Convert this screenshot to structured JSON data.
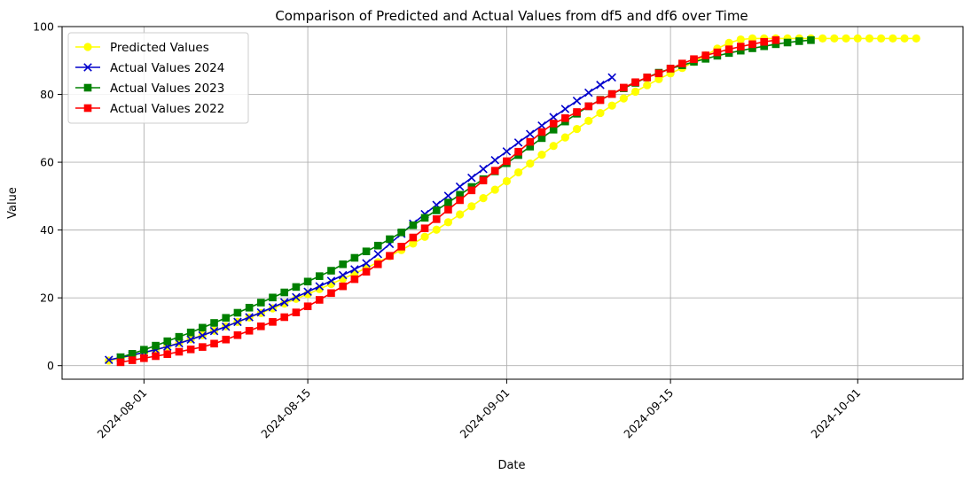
{
  "chart_data": {
    "type": "line",
    "title": "Comparison of Predicted and Actual Values from df5 and df6 over Time",
    "xlabel": "Date",
    "ylabel": "Value",
    "xlim": [
      "2024-07-25",
      "2024-10-10"
    ],
    "ylim": [
      -4,
      100
    ],
    "grid": true,
    "legend_position": "upper-left",
    "x_ticks": [
      {
        "date": "2024-08-01",
        "label": "2024-08-01"
      },
      {
        "date": "2024-08-15",
        "label": "2024-08-15"
      },
      {
        "date": "2024-09-01",
        "label": "2024-09-01"
      },
      {
        "date": "2024-09-15",
        "label": "2024-09-15"
      },
      {
        "date": "2024-10-01",
        "label": "2024-10-01"
      }
    ],
    "y_ticks": [
      0,
      20,
      40,
      60,
      80,
      100
    ],
    "series": [
      {
        "name": "Predicted Values",
        "color": "#ffff00",
        "marker": "circle",
        "start_date": "2024-07-29",
        "values": [
          1.5,
          2.2,
          3.0,
          3.8,
          4.7,
          5.7,
          6.7,
          7.8,
          9.0,
          10.3,
          11.6,
          12.9,
          14.2,
          15.5,
          16.9,
          18.3,
          19.7,
          21.1,
          22.6,
          24.1,
          25.6,
          27.2,
          28.8,
          30.5,
          32.3,
          34.1,
          36.0,
          38.0,
          40.1,
          42.3,
          44.6,
          47.0,
          49.4,
          51.9,
          54.4,
          57.0,
          59.6,
          62.2,
          64.8,
          67.3,
          69.8,
          72.2,
          74.5,
          76.7,
          78.8,
          80.8,
          82.7,
          84.5,
          86.2,
          87.8,
          89.6,
          91.5,
          93.5,
          95.2,
          96.2,
          96.5,
          96.5,
          96.5,
          96.5,
          96.5,
          96.5,
          96.5,
          96.5,
          96.5,
          96.5,
          96.5,
          96.5,
          96.5,
          96.5,
          96.5
        ]
      },
      {
        "name": "Actual Values 2024",
        "color": "#0000cc",
        "marker": "x",
        "start_date": "2024-07-29",
        "values": [
          1.7,
          2.4,
          3.1,
          3.9,
          4.7,
          5.6,
          6.6,
          7.7,
          8.9,
          10.2,
          11.5,
          12.9,
          14.3,
          15.7,
          17.2,
          18.7,
          20.2,
          21.8,
          23.4,
          25.0,
          26.7,
          28.4,
          30.2,
          32.9,
          35.9,
          38.9,
          41.9,
          44.7,
          47.4,
          50.1,
          52.8,
          55.4,
          58.0,
          60.6,
          63.2,
          65.8,
          68.3,
          70.8,
          73.3,
          75.7,
          78.1,
          80.5,
          82.8,
          85.0
        ]
      },
      {
        "name": "Actual Values 2023",
        "color": "#008000",
        "marker": "square",
        "start_date": "2024-07-30",
        "values": [
          2.5,
          3.5,
          4.7,
          5.9,
          7.2,
          8.5,
          9.8,
          11.2,
          12.6,
          14.1,
          15.6,
          17.1,
          18.6,
          20.1,
          21.6,
          23.2,
          24.8,
          26.4,
          28.0,
          29.9,
          31.8,
          33.7,
          35.4,
          37.3,
          39.3,
          41.4,
          43.6,
          45.8,
          48.1,
          50.4,
          52.7,
          55.0,
          57.3,
          59.7,
          62.1,
          64.6,
          67.1,
          69.6,
          72.0,
          74.3,
          76.5,
          78.4,
          80.1,
          81.8,
          83.4,
          85.0,
          86.4,
          87.6,
          88.6,
          89.6,
          90.5,
          91.4,
          92.2,
          92.9,
          93.6,
          94.2,
          94.8,
          95.3,
          95.7,
          96.0
        ]
      },
      {
        "name": "Actual Values 2022",
        "color": "#ff0000",
        "marker": "square",
        "start_date": "2024-07-30",
        "values": [
          1.0,
          1.6,
          2.2,
          2.8,
          3.4,
          4.1,
          4.8,
          5.5,
          6.5,
          7.7,
          9.0,
          10.3,
          11.6,
          12.9,
          14.3,
          15.7,
          17.5,
          19.4,
          21.4,
          23.4,
          25.5,
          27.7,
          29.9,
          32.4,
          35.1,
          37.8,
          40.5,
          43.2,
          46.0,
          48.8,
          51.7,
          54.6,
          57.5,
          60.3,
          63.1,
          66.0,
          68.9,
          71.4,
          73.0,
          74.8,
          76.5,
          78.3,
          80.1,
          82.0,
          83.6,
          85.0,
          86.2,
          87.6,
          89.1,
          90.4,
          91.5,
          92.4,
          93.3,
          94.1,
          94.8,
          95.5,
          96.0
        ]
      }
    ]
  }
}
